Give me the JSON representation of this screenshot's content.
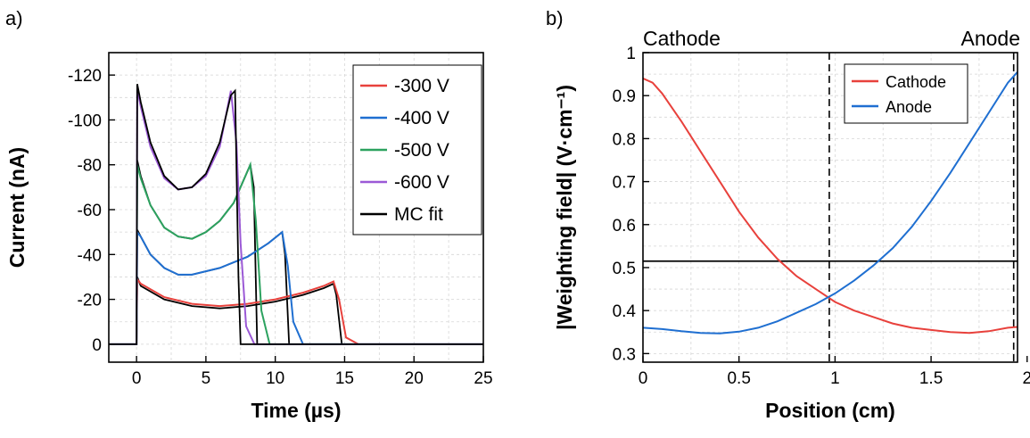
{
  "chart_data": [
    {
      "panel_label": "a)",
      "type": "line",
      "xlabel": "Time (µs)",
      "ylabel": "Current (nA)",
      "xlim": [
        -2,
        25
      ],
      "ylim": [
        8,
        -130
      ],
      "x_ticks": [
        0,
        5,
        10,
        15,
        20,
        25
      ],
      "x_tick_labels": [
        "0",
        "5",
        "10",
        "15",
        "20",
        "25"
      ],
      "y_ticks": [
        0,
        -20,
        -40,
        -60,
        -80,
        -100,
        -120
      ],
      "y_tick_labels": [
        "0",
        "-20",
        "-40",
        "-60",
        "-80",
        "-100",
        "-120"
      ],
      "grid": true,
      "legend_position": "top-right",
      "series": [
        {
          "name": "-300 V",
          "color": "#e8413c",
          "x": [
            -2,
            0,
            0.05,
            0.3,
            2,
            4,
            6,
            8,
            10,
            12,
            13.5,
            14.2,
            14.6,
            15.1,
            16,
            25
          ],
          "y": [
            0,
            0,
            -29,
            -27,
            -21,
            -18,
            -17,
            -18,
            -20,
            -23,
            -26,
            -28,
            -20,
            -3,
            0,
            0
          ]
        },
        {
          "name": "-400 V",
          "color": "#1f6fd1",
          "x": [
            -2,
            0,
            0.05,
            0.3,
            1,
            2,
            3,
            4,
            6,
            8,
            9.5,
            10.5,
            10.9,
            11.3,
            12,
            25
          ],
          "y": [
            0,
            0,
            -50,
            -48,
            -40,
            -34,
            -31,
            -31,
            -34,
            -39,
            -45,
            -50,
            -35,
            -10,
            0,
            0
          ]
        },
        {
          "name": "-500 V",
          "color": "#2ca25f",
          "x": [
            -2,
            0,
            0.05,
            0.3,
            1,
            2,
            3,
            4,
            5,
            6,
            7,
            8.2,
            8.6,
            9,
            9.6,
            25
          ],
          "y": [
            0,
            0,
            -80,
            -74,
            -62,
            -52,
            -48,
            -47,
            -50,
            -55,
            -63,
            -80,
            -55,
            -15,
            0,
            0
          ]
        },
        {
          "name": "-600 V",
          "color": "#9b59d6",
          "x": [
            -2,
            0,
            0.05,
            0.3,
            1,
            2,
            3,
            4,
            5,
            6,
            6.8,
            7.2,
            7.5,
            7.9,
            8.5,
            25
          ],
          "y": [
            0,
            0,
            -114,
            -106,
            -88,
            -74,
            -69,
            -70,
            -75,
            -88,
            -113,
            -90,
            -45,
            -8,
            0,
            0
          ]
        },
        {
          "name": "MC fit",
          "color": "#000000",
          "x": [
            -2,
            0,
            0.05,
            0.3,
            1,
            2,
            3,
            4,
            5,
            6,
            6.8,
            7.1,
            7.35,
            7.5,
            25
          ],
          "y": [
            0,
            0,
            -116,
            -108,
            -90,
            -75,
            -69,
            -70,
            -76,
            -90,
            -111,
            -113,
            -30,
            0,
            0
          ]
        }
      ],
      "extra_fit_curves": [
        {
          "x": [
            0,
            0.05,
            0.3,
            1,
            2,
            3,
            4,
            5,
            6,
            7,
            8.2,
            8.45,
            8.7,
            25
          ],
          "y": [
            0,
            -82,
            -75,
            -62,
            -52,
            -48,
            -47,
            -50,
            -55,
            -63,
            -80,
            -70,
            0,
            0
          ]
        },
        {
          "x": [
            0,
            0.05,
            0.3,
            1,
            2,
            3,
            4,
            6,
            8,
            9.5,
            10.5,
            10.7,
            11.0,
            25
          ],
          "y": [
            0,
            -51,
            -48,
            -40,
            -34,
            -31,
            -31,
            -34,
            -39,
            -45,
            -50,
            -40,
            0,
            0
          ]
        },
        {
          "x": [
            0,
            0.05,
            0.3,
            2,
            4,
            6,
            8,
            10,
            12,
            13.5,
            14.2,
            14.4,
            14.8,
            25
          ],
          "y": [
            0,
            -30,
            -26,
            -20,
            -17,
            -16,
            -17,
            -19,
            -22,
            -25,
            -27,
            -22,
            0,
            0
          ]
        }
      ]
    },
    {
      "panel_label": "b)",
      "type": "line",
      "xlabel": "Position (cm)",
      "ylabel": "|Weighting field| (V·cm⁻¹)",
      "xlim": [
        0,
        1.95
      ],
      "ylim": [
        0.28,
        1.0
      ],
      "x_ticks": [
        0,
        0.5,
        1,
        1.5,
        2
      ],
      "x_tick_labels": [
        "0",
        "0.5",
        "1",
        "1.5",
        "2"
      ],
      "y_ticks": [
        0.3,
        0.4,
        0.5,
        0.6,
        0.7,
        0.8,
        0.9,
        1
      ],
      "y_tick_labels": [
        "0.3",
        "0.4",
        "0.5",
        "0.6",
        "0.7",
        "0.8",
        "0.9",
        "1"
      ],
      "grid": true,
      "legend_position": "top-right",
      "series": [
        {
          "name": "Cathode",
          "color": "#e8413c",
          "x": [
            0,
            0.05,
            0.1,
            0.2,
            0.3,
            0.4,
            0.5,
            0.6,
            0.7,
            0.8,
            0.9,
            1.0,
            1.1,
            1.2,
            1.3,
            1.4,
            1.5,
            1.6,
            1.7,
            1.8,
            1.9,
            1.95
          ],
          "y": [
            0.94,
            0.93,
            0.905,
            0.84,
            0.77,
            0.7,
            0.63,
            0.57,
            0.52,
            0.48,
            0.45,
            0.42,
            0.4,
            0.385,
            0.37,
            0.36,
            0.355,
            0.35,
            0.348,
            0.352,
            0.36,
            0.362
          ]
        },
        {
          "name": "Anode",
          "color": "#1f6fd1",
          "x": [
            0,
            0.1,
            0.2,
            0.3,
            0.4,
            0.5,
            0.6,
            0.7,
            0.8,
            0.9,
            1.0,
            1.1,
            1.2,
            1.3,
            1.4,
            1.5,
            1.6,
            1.7,
            1.8,
            1.9,
            1.95
          ],
          "y": [
            0.36,
            0.357,
            0.352,
            0.348,
            0.347,
            0.351,
            0.36,
            0.375,
            0.395,
            0.415,
            0.44,
            0.47,
            0.505,
            0.545,
            0.595,
            0.655,
            0.72,
            0.79,
            0.86,
            0.93,
            0.955
          ]
        }
      ],
      "reference_lines": {
        "horizontal_y": 0.515,
        "vertical_x_dashed": [
          0.97,
          1.93
        ]
      },
      "side_labels": {
        "left": "Cathode",
        "right": "Anode"
      }
    }
  ]
}
